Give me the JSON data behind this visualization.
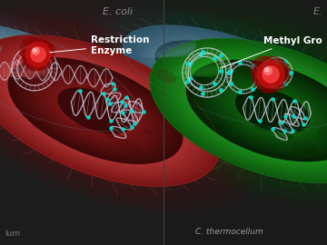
{
  "background_color": "#2a2a2a",
  "left_panel": {
    "bg_color": "#1a1a1a",
    "ecoli_outer": "#5a7a8a",
    "ecoli_inner": "#3a5a70",
    "ecoli_highlight": "#7aaabb",
    "bacterium_outer": "#9b3030",
    "bacterium_mid": "#7a1818",
    "bacterium_inner": "#500808",
    "bacterium_highlight": "#cc5555",
    "label_ecoli": "E. coli",
    "label_left_bottom": "lum",
    "annotation_text": "Restriction\nEnzyme",
    "annotation_color": "#ffffff",
    "cilia_color": "#88aacc"
  },
  "right_panel": {
    "bg_color": "#1e1e1e",
    "ecoli_outer": "#4a6a7a",
    "ecoli_inner": "#2a4a5a",
    "ecoli_highlight": "#6a9aaa",
    "bacterium_outer": "#1a7a1a",
    "bacterium_mid": "#0d550d",
    "bacterium_inner": "#073507",
    "bacterium_highlight": "#33bb33",
    "label_ecoli": "E.",
    "label_cthermo": "C. thermocellum",
    "annotation_text": "Methyl Gro",
    "annotation_color": "#ffffff",
    "cilia_color": "#44cc44"
  },
  "dna_color": "#c8c8d8",
  "methyl_color": "#00ddcc",
  "enzyme_outer": "#880000",
  "enzyme_mid": "#cc1111",
  "enzyme_inner": "#ff4444",
  "enzyme_highlight": "#ff9999",
  "title_color": "#bbbbbb",
  "annotation_fontsize": 7.5,
  "title_fontsize": 8,
  "figsize": [
    3.6,
    2.7
  ],
  "dpi": 100
}
